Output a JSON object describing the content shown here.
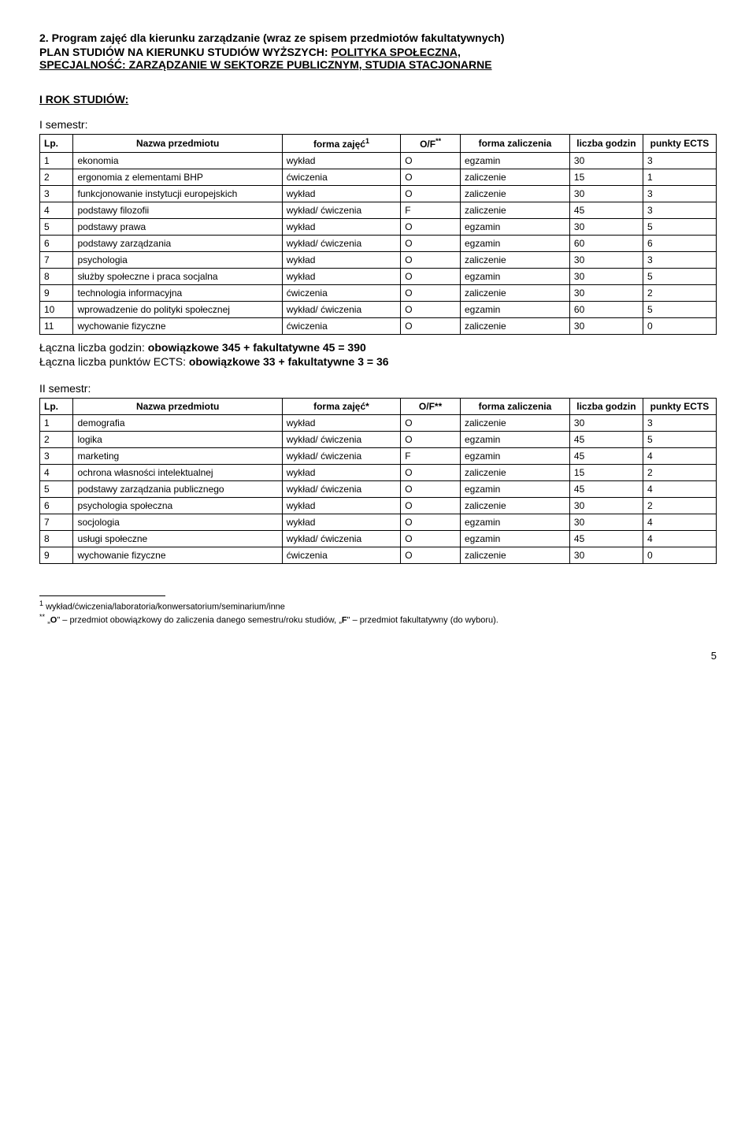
{
  "header": {
    "title": "2. Program zajęć dla kierunku zarządzanie (wraz ze spisem przedmiotów fakultatywnych)",
    "plan_prefix": "PLAN STUDIÓW NA KIERUNKU STUDIÓW WYŻSZYCH: ",
    "plan_underlined": "POLITYKA SPOŁECZNA,",
    "spec_prefix": "SPECJALNOŚĆ: ",
    "spec_underlined": "ZARZĄDZANIE W SEKTORZE PUBLICZNYM, STUDIA STACJONARNE"
  },
  "rok_heading": "I ROK STUDIÓW:",
  "sem1": {
    "heading": "I semestr:",
    "columns": {
      "lp": "Lp.",
      "name": "Nazwa przedmiotu",
      "forma": "forma zajęć",
      "forma_sup": "1",
      "of": "O/F",
      "of_sup": "**",
      "zal": "forma zaliczenia",
      "godz": "liczba godzin",
      "ects": "punkty ECTS"
    },
    "rows": [
      {
        "lp": "1",
        "name": "ekonomia",
        "forma": "wykład",
        "of": "O",
        "zal": "egzamin",
        "godz": "30",
        "ects": "3"
      },
      {
        "lp": "2",
        "name": "ergonomia z elementami BHP",
        "forma": "ćwiczenia",
        "of": "O",
        "zal": "zaliczenie",
        "godz": "15",
        "ects": "1"
      },
      {
        "lp": "3",
        "name": "funkcjonowanie instytucji europejskich",
        "forma": "wykład",
        "of": "O",
        "zal": "zaliczenie",
        "godz": "30",
        "ects": "3"
      },
      {
        "lp": "4",
        "name": "podstawy filozofii",
        "forma": "wykład/ ćwiczenia",
        "of": "F",
        "zal": "zaliczenie",
        "godz": "45",
        "ects": "3"
      },
      {
        "lp": "5",
        "name": "podstawy prawa",
        "forma": "wykład",
        "of": "O",
        "zal": "egzamin",
        "godz": "30",
        "ects": "5"
      },
      {
        "lp": "6",
        "name": "podstawy zarządzania",
        "forma": "wykład/ ćwiczenia",
        "of": "O",
        "zal": "egzamin",
        "godz": "60",
        "ects": "6"
      },
      {
        "lp": "7",
        "name": "psychologia",
        "forma": "wykład",
        "of": "O",
        "zal": "zaliczenie",
        "godz": "30",
        "ects": "3"
      },
      {
        "lp": "8",
        "name": "służby społeczne i praca socjalna",
        "forma": "wykład",
        "of": "O",
        "zal": "egzamin",
        "godz": "30",
        "ects": "5"
      },
      {
        "lp": "9",
        "name": "technologia informacyjna",
        "forma": "ćwiczenia",
        "of": "O",
        "zal": "zaliczenie",
        "godz": "30",
        "ects": "2"
      },
      {
        "lp": "10",
        "name": "wprowadzenie do polityki społecznej",
        "forma": "wykład/ ćwiczenia",
        "of": "O",
        "zal": "egzamin",
        "godz": "60",
        "ects": "5"
      },
      {
        "lp": "11",
        "name": "wychowanie fizyczne",
        "forma": "ćwiczenia",
        "of": "O",
        "zal": "zaliczenie",
        "godz": "30",
        "ects": "0"
      }
    ],
    "summary1_pre": "Łączna liczba godzin: ",
    "summary1_bold": "obowiązkowe 345 + fakultatywne 45 = 390",
    "summary2_pre": "Łączna liczba punktów ECTS: ",
    "summary2_bold": "obowiązkowe 33 + fakultatywne 3  = 36"
  },
  "sem2": {
    "heading": "II semestr:",
    "columns": {
      "lp": "Lp.",
      "name": "Nazwa przedmiotu",
      "forma": "forma zajęć*",
      "of": "O/F**",
      "zal": "forma zaliczenia",
      "godz": "liczba godzin",
      "ects": "punkty ECTS"
    },
    "rows": [
      {
        "lp": "1",
        "name": "demografia",
        "forma": "wykład",
        "of": "O",
        "zal": "zaliczenie",
        "godz": "30",
        "ects": "3"
      },
      {
        "lp": "2",
        "name": "logika",
        "forma": "wykład/ ćwiczenia",
        "of": "O",
        "zal": "egzamin",
        "godz": "45",
        "ects": "5"
      },
      {
        "lp": "3",
        "name": "marketing",
        "forma": "wykład/ ćwiczenia",
        "of": "F",
        "zal": "egzamin",
        "godz": "45",
        "ects": "4"
      },
      {
        "lp": "4",
        "name": "ochrona własności intelektualnej",
        "forma": "wykład",
        "of": "O",
        "zal": "zaliczenie",
        "godz": "15",
        "ects": "2"
      },
      {
        "lp": "5",
        "name": "podstawy zarządzania publicznego",
        "forma": "wykład/ ćwiczenia",
        "of": "O",
        "zal": "egzamin",
        "godz": "45",
        "ects": "4"
      },
      {
        "lp": "6",
        "name": "psychologia społeczna",
        "forma": "wykład",
        "of": "O",
        "zal": "zaliczenie",
        "godz": "30",
        "ects": "2"
      },
      {
        "lp": "7",
        "name": "socjologia",
        "forma": "wykład",
        "of": "O",
        "zal": "egzamin",
        "godz": "30",
        "ects": "4"
      },
      {
        "lp": "8",
        "name": "usługi społeczne",
        "forma": "wykład/ ćwiczenia",
        "of": "O",
        "zal": "egzamin",
        "godz": "45",
        "ects": "4"
      },
      {
        "lp": "9",
        "name": "wychowanie fizyczne",
        "forma": "ćwiczenia",
        "of": "O",
        "zal": "zaliczenie",
        "godz": "30",
        "ects": "0"
      }
    ]
  },
  "footnotes": {
    "f1_sup": "1",
    "f1_text": " wykład/ćwiczenia/laboratoria/konwersatorium/seminarium/inne",
    "f2_sup": "**",
    "f2_text_a": " „",
    "f2_bold_o": "O",
    "f2_text_b": "\" – przedmiot obowiązkowy do zaliczenia danego semestru/roku studiów, „",
    "f2_bold_f": "F",
    "f2_text_c": "\" – przedmiot fakultatywny (do wyboru)."
  },
  "page_number": "5"
}
